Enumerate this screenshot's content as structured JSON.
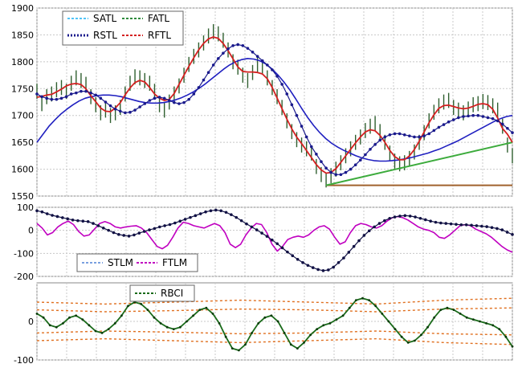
{
  "chart_data": [
    {
      "type": "line",
      "panel": "price",
      "ylim": [
        1550,
        1900
      ],
      "yticks": [
        "1900",
        "1850",
        "1800",
        "1750",
        "1700",
        "1650",
        "1600",
        "1550"
      ],
      "grid": true,
      "legend_position": "top-left",
      "legend": [
        "SATL",
        "FATL",
        "RSTL",
        "RFTL"
      ],
      "series_colors": {
        "price": "#2f5f2f",
        "SATL": "#4fc3f7",
        "FATL": "#2e8b3d",
        "RSTL": "#1a1a8c",
        "RFTL": "#d42020",
        "blue_curve": "#2020c0",
        "trend_line": "#3cab3c",
        "base_line": "#a0622d"
      },
      "price": [
        1745,
        1722,
        1735,
        1740,
        1748,
        1752,
        1745,
        1760,
        1770,
        1765,
        1758,
        1735,
        1720,
        1705,
        1710,
        1700,
        1705,
        1715,
        1740,
        1760,
        1772,
        1770,
        1765,
        1760,
        1745,
        1720,
        1710,
        1725,
        1740,
        1755,
        1775,
        1795,
        1810,
        1822,
        1835,
        1848,
        1856,
        1852,
        1840,
        1822,
        1800,
        1790,
        1775,
        1765,
        1780,
        1795,
        1790,
        1770,
        1752,
        1735,
        1715,
        1690,
        1670,
        1655,
        1645,
        1638,
        1630,
        1605,
        1590,
        1580,
        1588,
        1600,
        1612,
        1625,
        1638,
        1650,
        1660,
        1672,
        1680,
        1685,
        1670,
        1650,
        1630,
        1615,
        1610,
        1612,
        1620,
        1632,
        1650,
        1668,
        1690,
        1706,
        1718,
        1725,
        1728,
        1715,
        1710,
        1705,
        1712,
        1720,
        1722,
        1726,
        1724,
        1718,
        1710,
        1680,
        1645,
        1625
      ],
      "RSTL": [
        1740,
        1735,
        1732,
        1730,
        1730,
        1732,
        1735,
        1740,
        1742,
        1745,
        1745,
        1742,
        1738,
        1732,
        1725,
        1718,
        1712,
        1708,
        1705,
        1706,
        1710,
        1716,
        1722,
        1728,
        1732,
        1734,
        1732,
        1728,
        1724,
        1722,
        1724,
        1730,
        1740,
        1752,
        1766,
        1780,
        1794,
        1806,
        1816,
        1824,
        1830,
        1832,
        1830,
        1825,
        1818,
        1810,
        1802,
        1794,
        1785,
        1773,
        1758,
        1740,
        1720,
        1700,
        1680,
        1660,
        1642,
        1628,
        1614,
        1602,
        1594,
        1590,
        1590,
        1594,
        1600,
        1608,
        1617,
        1627,
        1637,
        1646,
        1654,
        1660,
        1664,
        1666,
        1666,
        1664,
        1662,
        1660,
        1660,
        1662,
        1666,
        1672,
        1678,
        1683,
        1688,
        1692,
        1696,
        1698,
        1699,
        1700,
        1700,
        1698,
        1696,
        1694,
        1690,
        1684,
        1676,
        1668
      ],
      "blue_curve": [
        1650,
        1665,
        1680,
        1692,
        1703,
        1712,
        1720,
        1727,
        1732,
        1735,
        1737,
        1738,
        1738,
        1737,
        1735,
        1732,
        1729,
        1726,
        1724,
        1723,
        1723,
        1724,
        1726,
        1729,
        1733,
        1738,
        1744,
        1751,
        1759,
        1768,
        1777,
        1786,
        1794,
        1800,
        1804,
        1806,
        1805,
        1802,
        1796,
        1787,
        1776,
        1763,
        1748,
        1731,
        1713,
        1696,
        1681,
        1668,
        1657,
        1648,
        1641,
        1635,
        1630,
        1625,
        1621,
        1618,
        1616,
        1615,
        1615,
        1616,
        1617,
        1619,
        1621,
        1624,
        1627,
        1630,
        1634,
        1638,
        1643,
        1648,
        1653,
        1659,
        1665,
        1671,
        1677,
        1683,
        1689,
        1694,
        1698,
        1700
      ],
      "trend_line": [
        [
          1570,
          1650
        ]
      ],
      "base_line": 1570
    },
    {
      "type": "line",
      "panel": "STLM/FTLM",
      "ylim": [
        -200,
        100
      ],
      "yticks": [
        "100",
        "0",
        "-100",
        "-200"
      ],
      "grid": true,
      "legend_position": "bottom-left",
      "legend": [
        "STLM",
        "FTLM"
      ],
      "series_colors": {
        "STLM": "#111144",
        "FTLM": "#c000c0"
      },
      "STLM": [
        85,
        80,
        72,
        65,
        60,
        55,
        50,
        45,
        42,
        40,
        38,
        30,
        20,
        10,
        0,
        -10,
        -18,
        -22,
        -25,
        -20,
        -12,
        -5,
        2,
        8,
        15,
        20,
        25,
        32,
        40,
        48,
        56,
        64,
        72,
        80,
        85,
        88,
        85,
        78,
        68,
        56,
        42,
        28,
        15,
        2,
        -12,
        -26,
        -42,
        -58,
        -76,
        -94,
        -110,
        -126,
        -140,
        -152,
        -162,
        -170,
        -175,
        -172,
        -160,
        -140,
        -120,
        -95,
        -70,
        -45,
        -22,
        -2,
        15,
        30,
        42,
        52,
        58,
        62,
        64,
        62,
        58,
        52,
        46,
        40,
        35,
        32,
        30,
        28,
        26,
        24,
        24,
        22,
        20,
        18,
        16,
        12,
        8,
        2,
        -8,
        -18
      ],
      "FTLM": [
        30,
        10,
        -20,
        -10,
        15,
        30,
        40,
        25,
        -5,
        -25,
        -20,
        5,
        30,
        38,
        30,
        15,
        10,
        15,
        18,
        20,
        10,
        -10,
        -40,
        -70,
        -80,
        -65,
        -30,
        10,
        35,
        30,
        20,
        15,
        10,
        20,
        30,
        20,
        -10,
        -60,
        -75,
        -60,
        -20,
        10,
        30,
        25,
        -10,
        -60,
        -90,
        -70,
        -40,
        -30,
        -25,
        -30,
        -20,
        0,
        15,
        20,
        5,
        -30,
        -60,
        -50,
        -10,
        20,
        30,
        25,
        15,
        10,
        20,
        40,
        55,
        60,
        55,
        45,
        30,
        15,
        5,
        0,
        -10,
        -30,
        -35,
        -20,
        0,
        20,
        25,
        20,
        5,
        -5,
        -15,
        -30,
        -50,
        -70,
        -85,
        -95
      ]
    },
    {
      "type": "line",
      "panel": "RBCI",
      "ylim": [
        -100,
        100
      ],
      "yticks": [
        "0",
        "-100"
      ],
      "grid": true,
      "legend_position": "top-left",
      "legend": [
        "RBCI"
      ],
      "series_colors": {
        "RBCI": "#1a6b1a",
        "bands": "#e07020"
      },
      "RBCI": [
        20,
        10,
        -10,
        -15,
        -5,
        10,
        15,
        5,
        -10,
        -25,
        -30,
        -20,
        -5,
        15,
        40,
        50,
        45,
        30,
        10,
        -5,
        -15,
        -20,
        -15,
        0,
        15,
        30,
        35,
        20,
        -5,
        -40,
        -70,
        -75,
        -60,
        -30,
        -5,
        10,
        15,
        0,
        -30,
        -60,
        -70,
        -55,
        -35,
        -20,
        -10,
        -5,
        5,
        15,
        35,
        55,
        60,
        55,
        40,
        20,
        0,
        -20,
        -40,
        -55,
        -50,
        -35,
        -15,
        10,
        30,
        35,
        30,
        20,
        10,
        5,
        0,
        -5,
        -10,
        -20,
        -40,
        -65
      ],
      "bands": [
        [
          50,
          30,
          -30,
          -50
        ],
        [
          45,
          25,
          -25,
          -45
        ],
        [
          50,
          28,
          -28,
          -50
        ],
        [
          55,
          32,
          -32,
          -55
        ],
        [
          50,
          30,
          -30,
          -50
        ],
        [
          45,
          25,
          -25,
          -45
        ],
        [
          55,
          32,
          -32,
          -55
        ],
        [
          60,
          35,
          -35,
          -60
        ]
      ]
    }
  ]
}
